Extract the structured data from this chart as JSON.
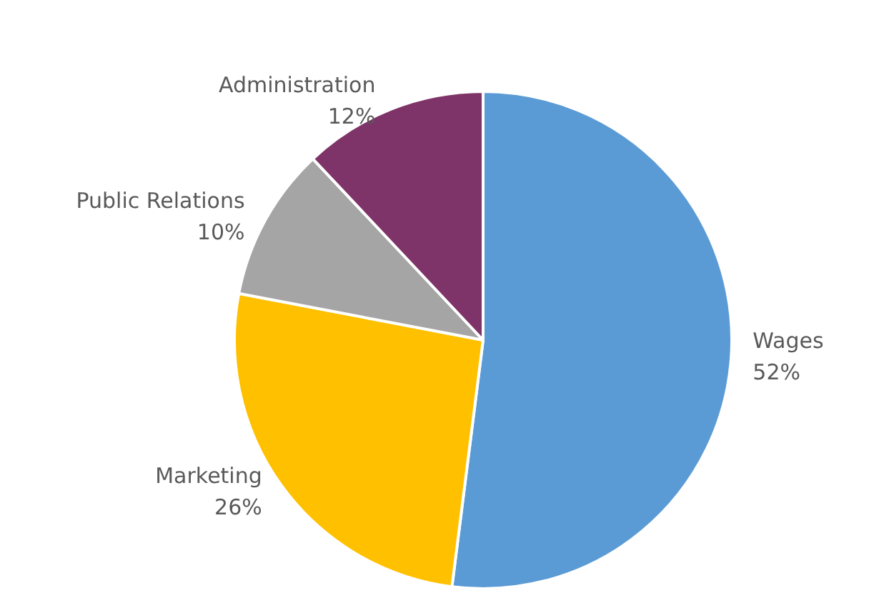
{
  "chart_data": {
    "type": "pie",
    "categories": [
      "Wages",
      "Marketing",
      "Public Relations",
      "Administration"
    ],
    "values": [
      52,
      26,
      10,
      12
    ],
    "colors": [
      "#5b9bd5",
      "#ffc000",
      "#a5a5a5",
      "#7e3468"
    ],
    "value_labels": [
      "52%",
      "26%",
      "10%",
      "12%"
    ],
    "legend": false
  }
}
